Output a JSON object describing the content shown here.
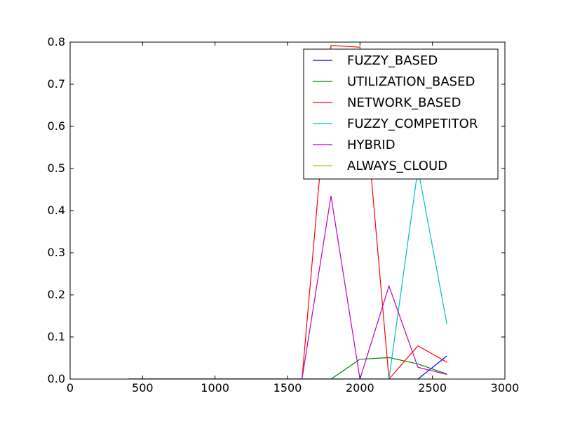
{
  "chart_data": {
    "type": "line",
    "title": "",
    "xlabel": "",
    "ylabel": "",
    "xlim": [
      0,
      3000
    ],
    "ylim": [
      0.0,
      0.8
    ],
    "x_ticks": [
      0,
      500,
      1000,
      1500,
      2000,
      2500,
      3000
    ],
    "x_tick_labels": [
      "0",
      "500",
      "1000",
      "1500",
      "2000",
      "2500",
      "3000"
    ],
    "y_ticks": [
      0.0,
      0.1,
      0.2,
      0.3,
      0.4,
      0.5,
      0.6,
      0.7,
      0.8
    ],
    "y_tick_labels": [
      "0.0",
      "0.1",
      "0.2",
      "0.3",
      "0.4",
      "0.5",
      "0.6",
      "0.7",
      "0.8"
    ],
    "grid": false,
    "legend_position": "top-right",
    "x": [
      400,
      600,
      800,
      1000,
      1200,
      1400,
      1600,
      1800,
      2000,
      2200,
      2400,
      2600
    ],
    "series": [
      {
        "name": "FUZZY_BASED",
        "color": "#0000ff",
        "values": [
          0,
          0,
          0,
          0,
          0,
          0,
          0,
          0,
          0,
          0,
          0,
          0.055
        ]
      },
      {
        "name": "UTILIZATION_BASED",
        "color": "#008000",
        "values": [
          0,
          0,
          0,
          0,
          0,
          0,
          0,
          0,
          0.047,
          0.051,
          0.036,
          0.012
        ]
      },
      {
        "name": "NETWORK_BASED",
        "color": "#ff0000",
        "values": [
          0,
          0,
          0,
          0,
          0,
          0,
          0,
          0.792,
          0.788,
          0,
          0.079,
          0.04
        ]
      },
      {
        "name": "FUZZY_COMPETITOR",
        "color": "#00bfbf",
        "values": [
          0,
          0,
          0,
          0,
          0,
          0,
          0,
          0,
          0,
          0,
          0.5,
          0.13
        ]
      },
      {
        "name": "HYBRID",
        "color": "#bf00bf",
        "values": [
          0,
          0,
          0,
          0,
          0,
          0,
          0,
          0.435,
          0,
          0.221,
          0.028,
          0.011
        ]
      },
      {
        "name": "ALWAYS_CLOUD",
        "color": "#bfbf00",
        "values": [
          0,
          0,
          0,
          0,
          0,
          0,
          0,
          0,
          0,
          0,
          0,
          0
        ]
      }
    ]
  }
}
